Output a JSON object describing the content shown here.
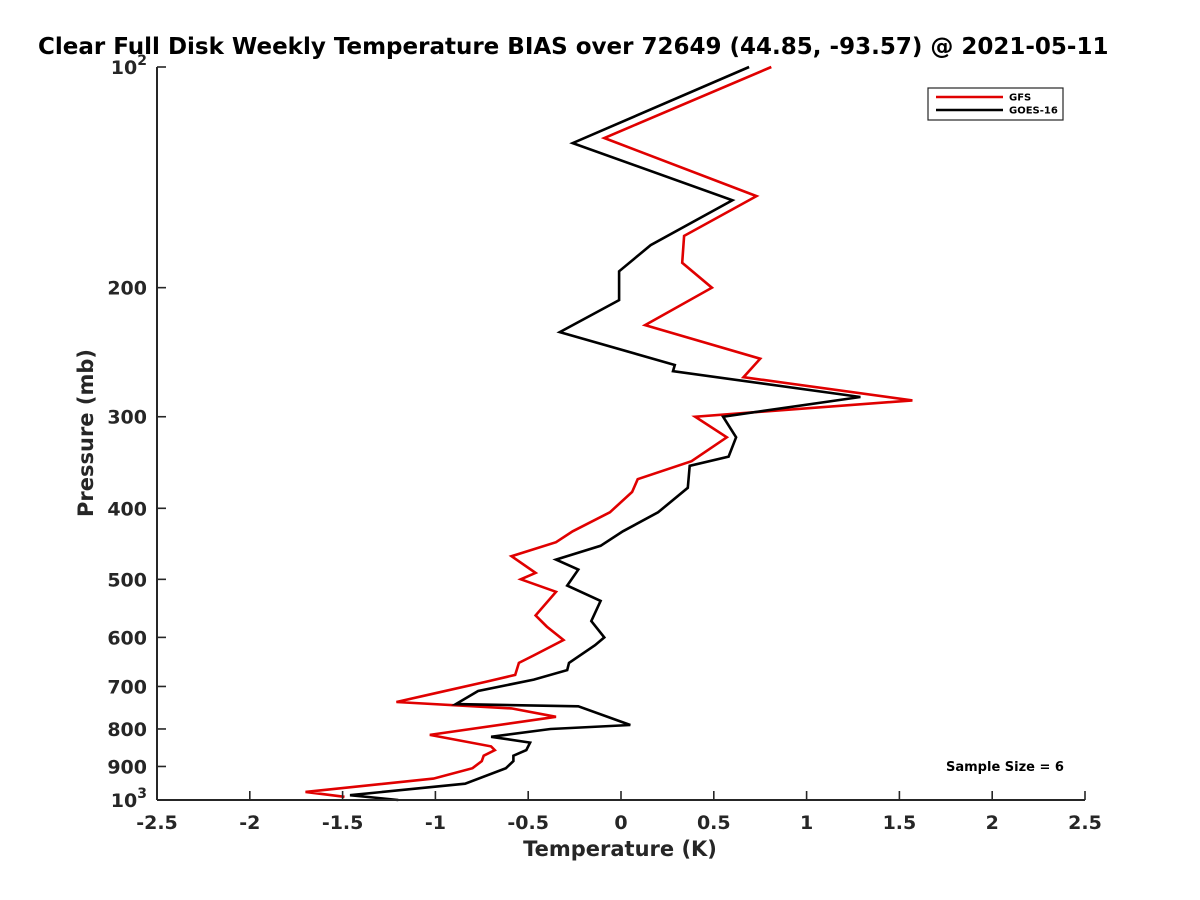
{
  "chart_data": {
    "type": "line",
    "title": "Clear Full Disk Weekly Temperature BIAS over 72649 (44.85, -93.57) @ 2021-05-11",
    "xlabel": "Temperature (K)",
    "ylabel": "Pressure (mb)",
    "xlim": [
      -2.5,
      2.5
    ],
    "ylim": [
      1000,
      100
    ],
    "y_scale": "log",
    "y_reversed": true,
    "grid": false,
    "legend_position": "top-right",
    "x_ticks": [
      -2.5,
      -2,
      -1.5,
      -1,
      -0.5,
      0,
      0.5,
      1,
      1.5,
      2,
      2.5
    ],
    "x_tick_labels": [
      "-2.5",
      "-2",
      "-1.5",
      "-1",
      "-0.5",
      "0",
      "0.5",
      "1",
      "1.5",
      "2",
      "2.5"
    ],
    "y_ticks": [
      100,
      200,
      300,
      400,
      500,
      600,
      700,
      800,
      900,
      1000
    ],
    "y_tick_labels": [
      {
        "base": "10",
        "exp": "2"
      },
      {
        "base": "200",
        "exp": ""
      },
      {
        "base": "300",
        "exp": ""
      },
      {
        "base": "400",
        "exp": ""
      },
      {
        "base": "500",
        "exp": ""
      },
      {
        "base": "600",
        "exp": ""
      },
      {
        "base": "700",
        "exp": ""
      },
      {
        "base": "800",
        "exp": ""
      },
      {
        "base": "900",
        "exp": ""
      },
      {
        "base": "10",
        "exp": "3"
      }
    ],
    "series": [
      {
        "name": "GFS",
        "color": "#e00000",
        "points": [
          [
            0.81,
            100
          ],
          [
            -0.09,
            125
          ],
          [
            0.73,
            150
          ],
          [
            0.34,
            170
          ],
          [
            0.33,
            185
          ],
          [
            0.49,
            200
          ],
          [
            0.13,
            225
          ],
          [
            0.75,
            250
          ],
          [
            0.66,
            265
          ],
          [
            1.57,
            285
          ],
          [
            0.4,
            300
          ],
          [
            0.57,
            320
          ],
          [
            0.38,
            345
          ],
          [
            0.09,
            365
          ],
          [
            0.06,
            380
          ],
          [
            -0.06,
            405
          ],
          [
            -0.26,
            430
          ],
          [
            -0.35,
            445
          ],
          [
            -0.59,
            465
          ],
          [
            -0.46,
            490
          ],
          [
            -0.54,
            500
          ],
          [
            -0.35,
            520
          ],
          [
            -0.46,
            560
          ],
          [
            -0.4,
            580
          ],
          [
            -0.31,
            605
          ],
          [
            -0.47,
            635
          ],
          [
            -0.55,
            650
          ],
          [
            -0.57,
            675
          ],
          [
            -0.73,
            690
          ],
          [
            -1.0,
            715
          ],
          [
            -1.21,
            735
          ],
          [
            -0.59,
            750
          ],
          [
            -0.35,
            770
          ],
          [
            -1.03,
            815
          ],
          [
            -0.7,
            845
          ],
          [
            -0.68,
            855
          ],
          [
            -0.74,
            870
          ],
          [
            -0.75,
            885
          ],
          [
            -0.8,
            905
          ],
          [
            -1.01,
            935
          ],
          [
            -1.7,
            975
          ],
          [
            -1.49,
            990
          ]
        ]
      },
      {
        "name": "GOES-16",
        "color": "#000000",
        "points": [
          [
            0.69,
            100
          ],
          [
            -0.26,
            127
          ],
          [
            0.6,
            152
          ],
          [
            0.16,
            175
          ],
          [
            -0.01,
            190
          ],
          [
            -0.01,
            208
          ],
          [
            -0.33,
            230
          ],
          [
            0.29,
            255
          ],
          [
            0.28,
            260
          ],
          [
            1.29,
            282
          ],
          [
            0.55,
            300
          ],
          [
            0.62,
            320
          ],
          [
            0.58,
            340
          ],
          [
            0.37,
            350
          ],
          [
            0.36,
            375
          ],
          [
            0.2,
            405
          ],
          [
            0.01,
            430
          ],
          [
            -0.11,
            450
          ],
          [
            -0.35,
            470
          ],
          [
            -0.23,
            485
          ],
          [
            -0.29,
            510
          ],
          [
            -0.11,
            535
          ],
          [
            -0.16,
            570
          ],
          [
            -0.09,
            600
          ],
          [
            -0.14,
            615
          ],
          [
            -0.28,
            650
          ],
          [
            -0.29,
            665
          ],
          [
            -0.47,
            685
          ],
          [
            -0.77,
            710
          ],
          [
            -0.89,
            740
          ],
          [
            -0.23,
            745
          ],
          [
            0.05,
            790
          ],
          [
            -0.38,
            800
          ],
          [
            -0.7,
            820
          ],
          [
            -0.49,
            835
          ],
          [
            -0.51,
            855
          ],
          [
            -0.58,
            870
          ],
          [
            -0.58,
            885
          ],
          [
            -0.62,
            905
          ],
          [
            -0.84,
            950
          ],
          [
            -1.46,
            985
          ],
          [
            -1.2,
            1000
          ]
        ]
      }
    ],
    "annotation": "Sample Size = 6"
  }
}
